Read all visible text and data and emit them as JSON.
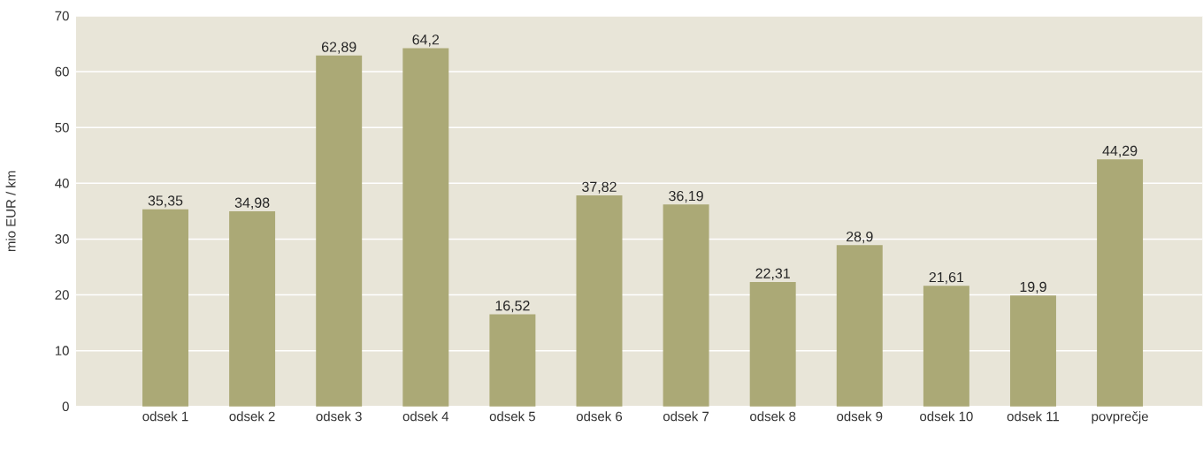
{
  "chart_data": {
    "type": "bar",
    "ylabel": "mio EUR / km",
    "categories": [
      "odsek 1",
      "odsek 2",
      "odsek 3",
      "odsek 4",
      "odsek 5",
      "odsek 6",
      "odsek 7",
      "odsek 8",
      "odsek 9",
      "odsek 10",
      "odsek 11",
      "povprečje"
    ],
    "values": [
      35.35,
      34.98,
      62.89,
      64.2,
      16.52,
      37.82,
      36.19,
      22.31,
      28.9,
      21.61,
      19.9,
      44.29
    ],
    "value_labels": [
      "35,35",
      "34,98",
      "62,89",
      "64,2",
      "16,52",
      "37,82",
      "36,19",
      "22,31",
      "28,9",
      "21,61",
      "19,9",
      "44,29"
    ],
    "color": "#aba976",
    "ylim": [
      0,
      70
    ],
    "yticks": [
      0,
      10,
      20,
      30,
      40,
      50,
      60,
      70
    ],
    "grid": "y"
  }
}
